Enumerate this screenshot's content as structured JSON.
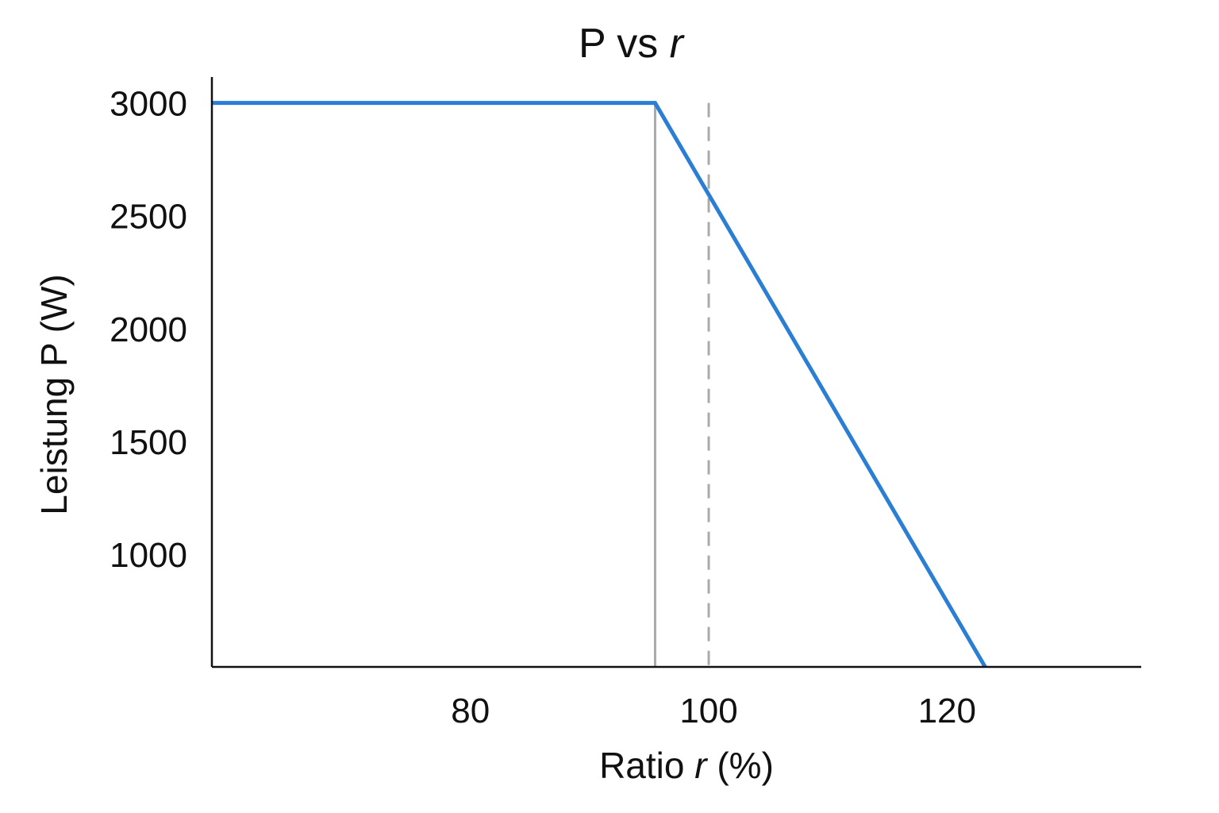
{
  "chart_data": {
    "type": "line",
    "title": "P vs r",
    "title_parts": {
      "prefix": "P vs ",
      "var": "r"
    },
    "xlabel": "Ratio r (%)",
    "xlabel_parts": {
      "prefix": "Ratio ",
      "var": "r",
      "suffix": " (%)"
    },
    "ylabel": "Leistung P (W)",
    "xlim": [
      58.3,
      136.3
    ],
    "ylim": [
      500,
      3115
    ],
    "xticks": [
      80,
      100,
      120
    ],
    "yticks": [
      1000,
      1500,
      2000,
      2500,
      3000
    ],
    "grid": false,
    "series": [
      {
        "name": "P",
        "color": "#2a7fd4",
        "x": [
          58.3,
          95.5,
          123.2
        ],
        "y": [
          3000,
          3000,
          500
        ]
      }
    ],
    "vlines": [
      {
        "x": 95.5,
        "style": "solid",
        "color": "#aaaaaa",
        "y_top": 3000
      },
      {
        "x": 100,
        "style": "dashed",
        "color": "#aaaaaa",
        "y_top": 3000
      }
    ]
  }
}
